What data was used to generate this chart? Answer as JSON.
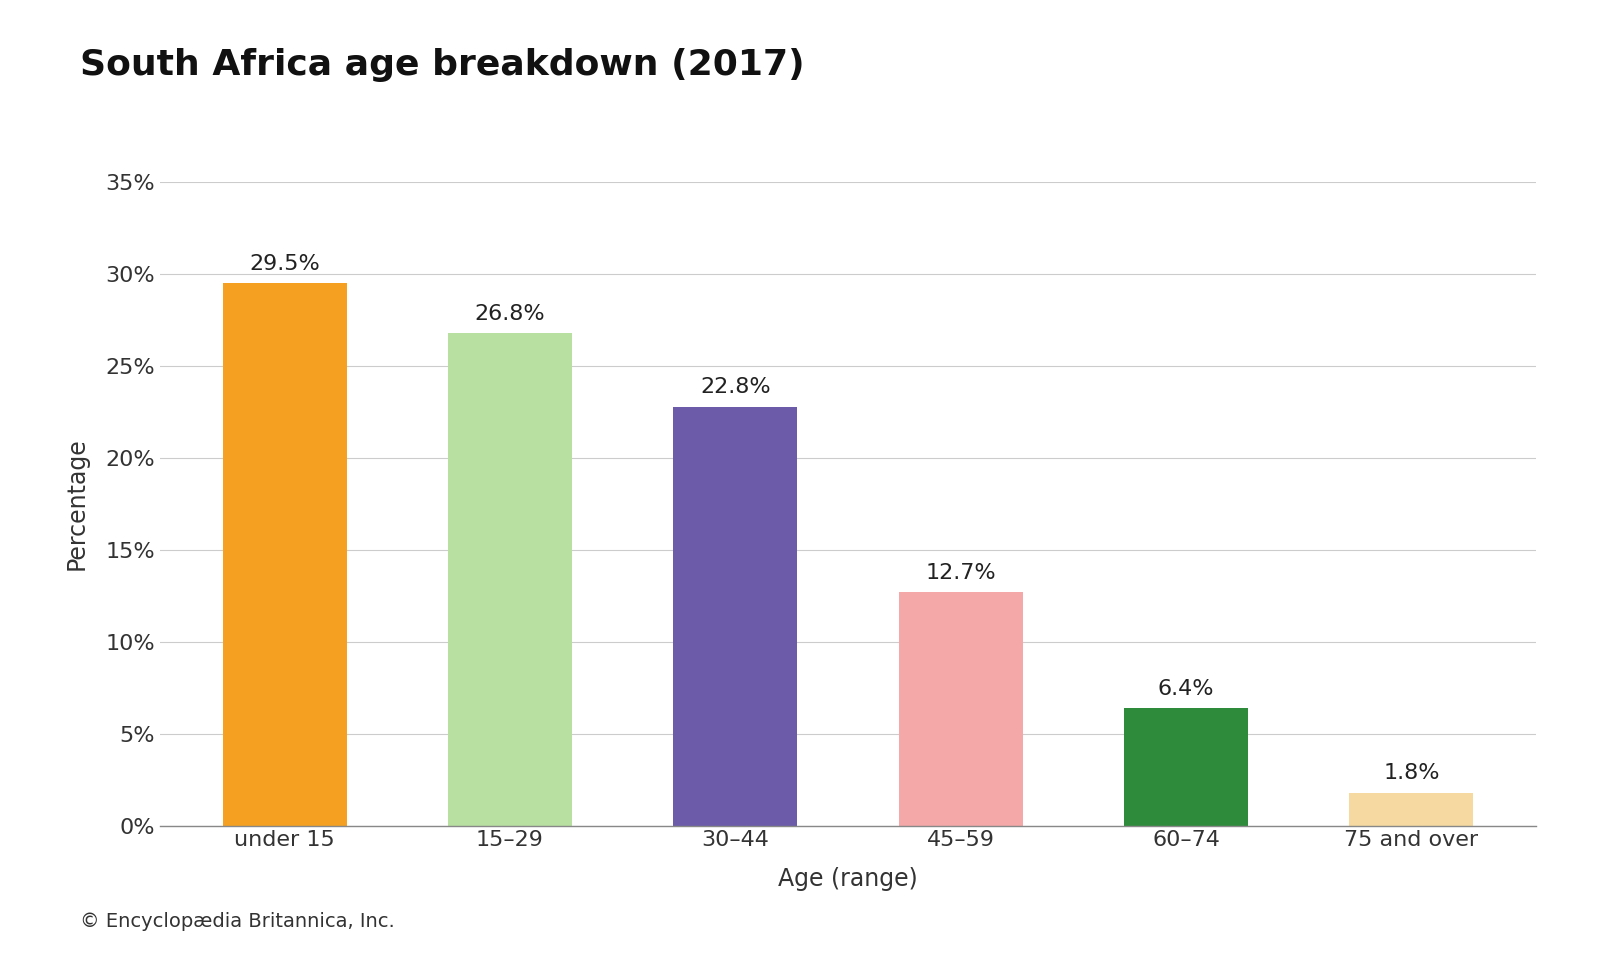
{
  "title": "South Africa age breakdown (2017)",
  "categories": [
    "under 15",
    "15–29",
    "30–44",
    "45–59",
    "60–74",
    "75 and over"
  ],
  "values": [
    29.5,
    26.8,
    22.8,
    12.7,
    6.4,
    1.8
  ],
  "bar_colors": [
    "#F5A020",
    "#B8E0A0",
    "#6B5BA8",
    "#F4A8A8",
    "#2E8B3C",
    "#F5D9A0"
  ],
  "xlabel": "Age (range)",
  "ylabel": "Percentage",
  "ylim": [
    0,
    35
  ],
  "yticks": [
    0,
    5,
    10,
    15,
    20,
    25,
    30,
    35
  ],
  "footnote": "© Encyclopædia Britannica, Inc.",
  "title_fontsize": 26,
  "label_fontsize": 17,
  "tick_fontsize": 16,
  "annot_fontsize": 16,
  "footnote_fontsize": 14,
  "background_color": "#ffffff"
}
